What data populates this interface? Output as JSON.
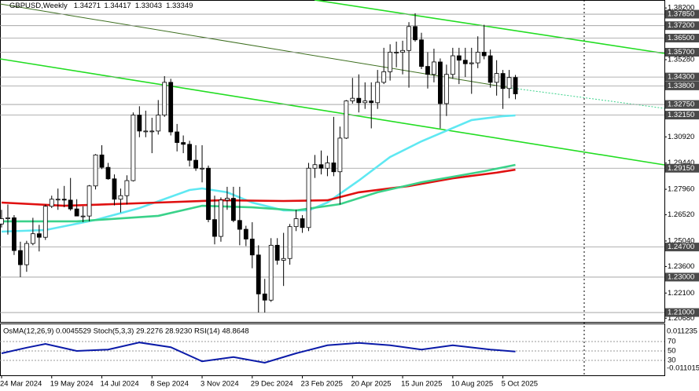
{
  "chart_data": {
    "type": "candlestick",
    "title": "GBPUSD,Weekly",
    "categories": [
      "24 Mar 2024",
      null,
      null,
      null,
      null,
      null,
      null,
      null,
      "19 May 2024",
      null,
      null,
      null,
      null,
      null,
      null,
      null,
      "14 Jul 2024",
      null,
      null,
      null,
      null,
      null,
      null,
      null,
      "8 Sep 2024",
      null,
      null,
      null,
      null,
      null,
      null,
      null,
      "3 Nov 2024",
      null,
      null,
      null,
      null,
      null,
      null,
      null,
      "29 Dec 2024",
      null,
      null,
      null,
      null,
      null,
      null,
      null,
      "23 Feb 2025",
      null,
      null,
      null,
      null,
      null,
      null,
      null,
      "20 Apr 2025",
      null,
      null,
      null,
      null,
      null,
      null,
      null,
      "15 Jun 2025",
      null,
      null,
      null,
      null,
      null,
      null,
      null,
      "10 Aug 2025",
      null,
      null,
      null,
      null,
      null,
      null,
      null,
      "5 Oct 2025",
      null,
      null
    ],
    "open": [
      1.26,
      1.263,
      1.2635,
      1.245,
      1.237,
      1.249,
      1.2545,
      1.2525,
      1.27,
      1.274,
      1.274,
      1.2735,
      1.2685,
      1.2645,
      1.2645,
      1.2815,
      1.299,
      1.292,
      1.2855,
      1.274,
      1.276,
      1.2845,
      1.3215,
      1.3125,
      1.3125,
      1.3125,
      1.3215,
      1.34,
      1.312,
      1.306,
      1.305,
      1.296,
      1.2915,
      1.2915,
      1.2625,
      1.253,
      1.2735,
      1.2745,
      1.262,
      1.257,
      1.2515,
      1.2425,
      1.2205,
      1.217,
      1.248,
      1.2395,
      1.2405,
      1.2585,
      1.263,
      1.258,
      1.2915,
      1.2935,
      1.2915,
      1.2945,
      1.2895,
      1.3085,
      1.3295,
      1.331,
      1.3285,
      1.3295,
      1.3285,
      1.34,
      1.346,
      1.357,
      1.357,
      1.358,
      1.3715,
      1.364,
      1.349,
      1.3445,
      1.3515,
      1.328,
      1.3445,
      1.355,
      1.3525,
      1.3505,
      1.351,
      1.357,
      1.355,
      1.34,
      1.345,
      1.3365,
      1.34271
    ],
    "high": [
      1.268,
      1.271,
      1.265,
      1.25,
      1.2505,
      1.2635,
      1.2595,
      1.271,
      1.276,
      1.28,
      1.2815,
      1.286,
      1.274,
      1.27,
      1.282,
      1.2995,
      1.3045,
      1.2945,
      1.288,
      1.28,
      1.2875,
      1.323,
      1.3265,
      1.324,
      1.32,
      1.33,
      1.3435,
      1.342,
      1.3165,
      1.31,
      1.307,
      1.3045,
      1.3045,
      1.293,
      1.276,
      1.275,
      1.281,
      1.281,
      1.281,
      1.259,
      1.261,
      1.248,
      1.229,
      1.252,
      1.252,
      1.255,
      1.26,
      1.268,
      1.265,
      1.2945,
      1.299,
      1.3015,
      1.2985,
      1.3205,
      1.315,
      1.33,
      1.3425,
      1.3445,
      1.34,
      1.34,
      1.347,
      1.3595,
      1.3615,
      1.363,
      1.3635,
      1.374,
      1.379,
      1.368,
      1.357,
      1.359,
      1.3535,
      1.35,
      1.3595,
      1.3595,
      1.3595,
      1.3595,
      1.366,
      1.3725,
      1.3585,
      1.3525,
      1.347,
      1.347,
      1.34417
    ],
    "low": [
      1.258,
      1.254,
      1.2425,
      1.23,
      1.233,
      1.248,
      1.2445,
      1.251,
      1.269,
      1.268,
      1.2695,
      1.2675,
      1.2655,
      1.261,
      1.2615,
      1.2795,
      1.291,
      1.285,
      1.2705,
      1.2665,
      1.271,
      1.284,
      1.309,
      1.309,
      1.3,
      1.3105,
      1.3205,
      1.31,
      1.301,
      1.3,
      1.2925,
      1.29,
      1.2835,
      1.261,
      1.2485,
      1.25,
      1.268,
      1.261,
      1.248,
      1.2475,
      1.235,
      1.21,
      1.21,
      1.216,
      1.237,
      1.225,
      1.237,
      1.256,
      1.255,
      1.256,
      1.286,
      1.288,
      1.287,
      1.287,
      1.271,
      1.308,
      1.328,
      1.323,
      1.325,
      1.314,
      1.325,
      1.339,
      1.341,
      1.3485,
      1.3445,
      1.337,
      1.363,
      1.3475,
      1.3365,
      1.34,
      1.314,
      1.321,
      1.342,
      1.339,
      1.343,
      1.3335,
      1.348,
      1.353,
      1.337,
      1.3325,
      1.325,
      1.331,
      1.33043
    ],
    "close": [
      1.263,
      1.2635,
      1.245,
      1.237,
      1.249,
      1.2545,
      1.2525,
      1.27,
      1.274,
      1.274,
      1.2735,
      1.2685,
      1.2645,
      1.2645,
      1.2815,
      1.299,
      1.292,
      1.2855,
      1.274,
      1.276,
      1.2845,
      1.3215,
      1.3125,
      1.3125,
      1.3125,
      1.3215,
      1.34,
      1.312,
      1.306,
      1.305,
      1.296,
      1.2915,
      1.2915,
      1.2625,
      1.253,
      1.2735,
      1.2745,
      1.262,
      1.257,
      1.2515,
      1.2425,
      1.2205,
      1.217,
      1.248,
      1.2395,
      1.2405,
      1.2585,
      1.263,
      1.258,
      1.2915,
      1.2935,
      1.2915,
      1.2945,
      1.2895,
      1.3085,
      1.3295,
      1.331,
      1.3285,
      1.3295,
      1.3285,
      1.34,
      1.346,
      1.357,
      1.357,
      1.358,
      1.3715,
      1.364,
      1.349,
      1.3445,
      1.3515,
      1.328,
      1.3445,
      1.355,
      1.3525,
      1.3505,
      1.351,
      1.357,
      1.355,
      1.34,
      1.345,
      1.3365,
      1.34271,
      1.33349
    ],
    "moving_averages": [
      {
        "color": "#5fe8f2",
        "x": [
          0,
          7,
          15,
          22,
          30,
          32,
          36,
          40,
          45,
          49,
          52,
          57,
          62,
          67,
          72,
          75,
          80,
          82
        ],
        "values": [
          1.2557,
          1.2566,
          1.2623,
          1.269,
          1.2792,
          1.2801,
          1.2779,
          1.2721,
          1.2677,
          1.2677,
          1.2721,
          1.2845,
          1.2978,
          1.3067,
          1.3142,
          1.3187,
          1.3209,
          1.3213
        ]
      },
      {
        "color": "#e01010",
        "x": [
          0,
          10,
          25,
          35,
          45,
          52,
          57,
          65,
          72,
          79,
          82
        ],
        "values": [
          1.2721,
          1.2703,
          1.2721,
          1.2734,
          1.273,
          1.2734,
          1.2779,
          1.2814,
          1.2858,
          1.289,
          1.2907
        ]
      },
      {
        "color": "#3ad28a",
        "x": [
          0,
          12,
          25,
          32,
          40,
          47,
          54,
          60,
          67,
          77,
          82
        ],
        "values": [
          1.2615,
          1.2615,
          1.2646,
          1.2703,
          1.2694,
          1.2677,
          1.2712,
          1.2779,
          1.2836,
          1.2898,
          1.2934
        ]
      }
    ],
    "ylim": [
      1.2047,
      1.3865
    ],
    "yticks": [
      {
        "value": 1.382,
        "label": "1.38200"
      },
      {
        "value": 1.3528,
        "label": "1.35280"
      },
      {
        "value": 1.3092,
        "label": "1.30920"
      },
      {
        "value": 1.2944,
        "label": "1.29440"
      },
      {
        "value": 1.2796,
        "label": "1.27960"
      },
      {
        "value": 1.2652,
        "label": "1.26520"
      },
      {
        "value": 1.2504,
        "label": "1.25040"
      },
      {
        "value": 1.236,
        "label": "1.23600"
      },
      {
        "value": 1.221,
        "label": "1.22100"
      },
      {
        "value": 1.2068,
        "label": "1.20680"
      }
    ],
    "levels": [
      {
        "value": 1.3785,
        "label": "1.37850"
      },
      {
        "value": 1.372,
        "label": "1.37200"
      },
      {
        "value": 1.365,
        "label": "1.36500"
      },
      {
        "value": 1.357,
        "label": "1.35700"
      },
      {
        "value": 1.343,
        "label": "1.34300"
      },
      {
        "value": 1.338,
        "label": "1.33800"
      },
      {
        "value": 1.3275,
        "label": "1.32750"
      },
      {
        "value": 1.3215,
        "label": "1.32150"
      },
      {
        "value": 1.2915,
        "label": "1.29150"
      },
      {
        "value": 1.247,
        "label": "1.24700"
      },
      {
        "value": 1.23,
        "label": "1.23000"
      },
      {
        "value": 1.21,
        "label": "1.21000"
      }
    ],
    "indicator_label": "OsMA(12,26,9) 0.0045529 Stoch(5,3,3) 29.2276 28.9230 RSI(14) 48.8648",
    "osma_axis_labels": [
      "0.011235",
      "-0.011015"
    ],
    "rsi": {
      "color": "#0a1aa8",
      "x": [
        0,
        4,
        7,
        12,
        17,
        22,
        27,
        32,
        37,
        42,
        47,
        52,
        57,
        62,
        67,
        72,
        78,
        82
      ],
      "values": [
        45,
        57,
        65,
        50,
        53,
        68,
        58,
        28,
        37,
        25,
        45,
        62,
        67,
        62,
        53,
        62,
        53,
        48.8648
      ]
    },
    "rsi_ylim": [
      0,
      100
    ],
    "rsi_ticks": [
      70,
      50,
      30
    ]
  }
}
